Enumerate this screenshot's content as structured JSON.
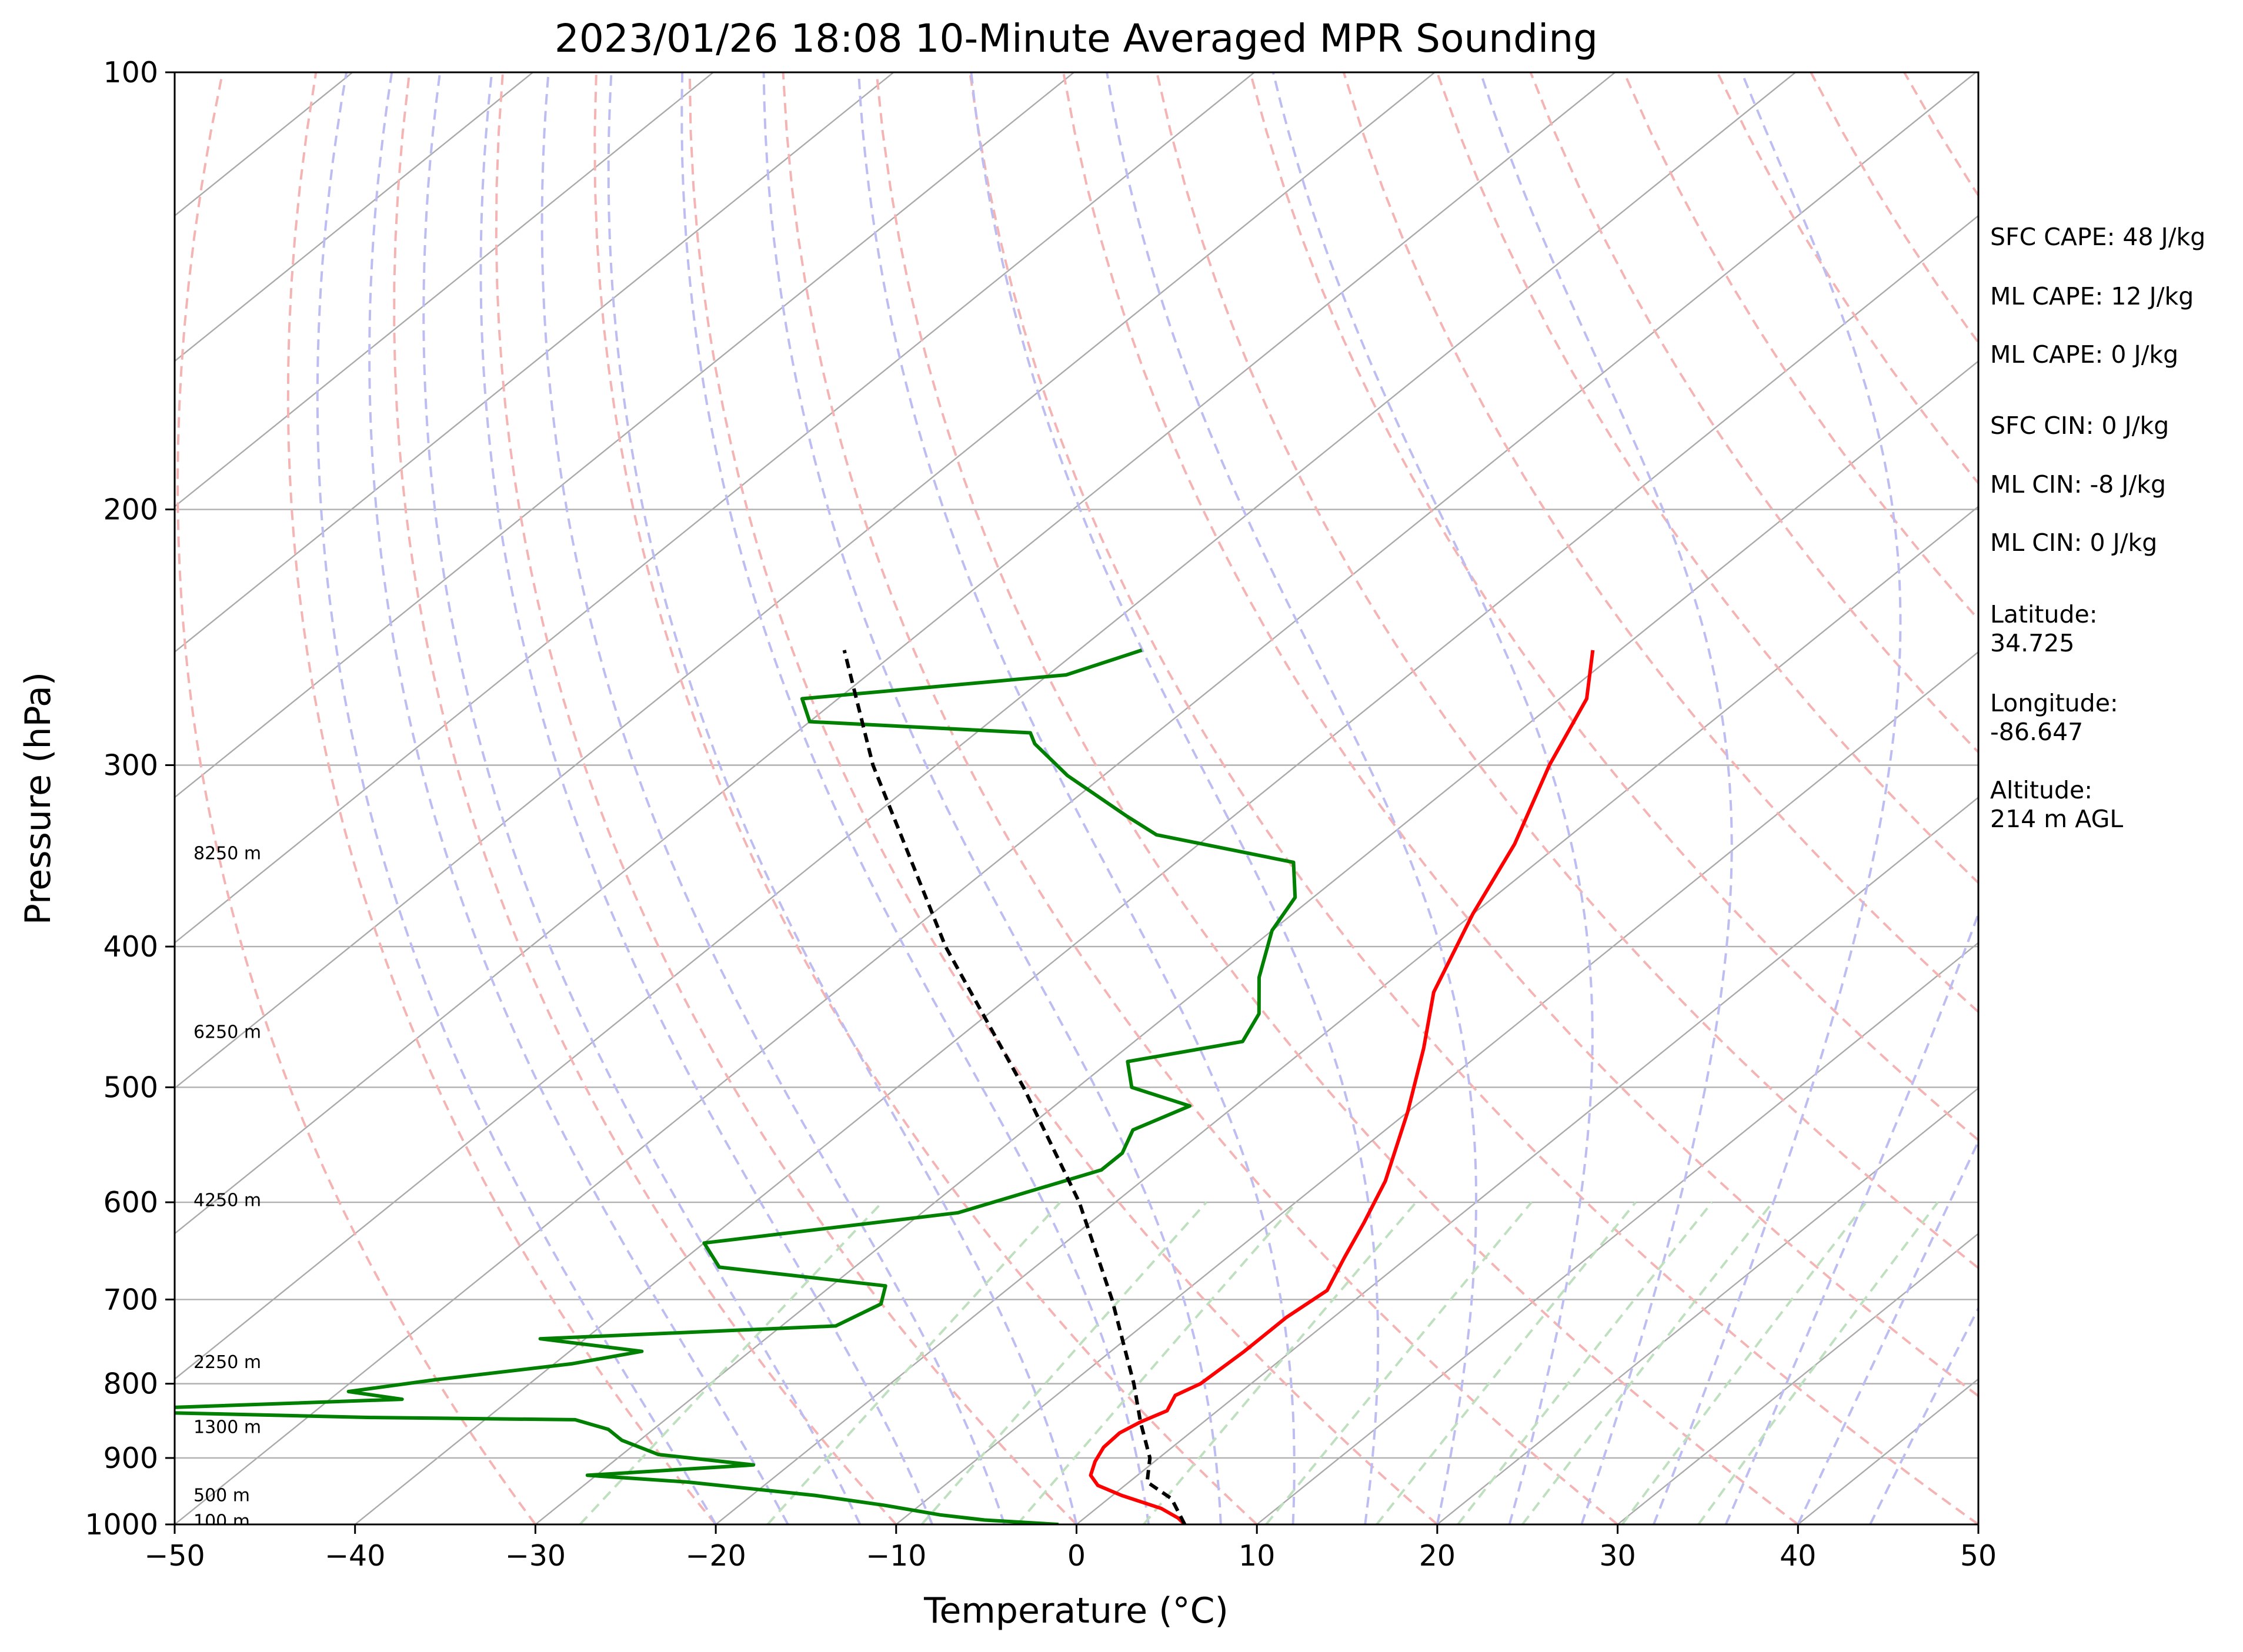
{
  "chart_data": {
    "type": "line",
    "title": "2023/01/26 18:08 10-Minute Averaged MPR Sounding",
    "xlabel": "Temperature (°C)",
    "ylabel": "Pressure (hPa)",
    "xlim": [
      -50,
      50
    ],
    "ylim": [
      1000,
      100
    ],
    "y_scale": "log",
    "x_ticks": [
      -50,
      -40,
      -30,
      -20,
      -10,
      0,
      10,
      20,
      30,
      40,
      50
    ],
    "x_tick_labels": [
      "−50",
      "−40",
      "−30",
      "−20",
      "−10",
      "0",
      "10",
      "20",
      "30",
      "40",
      "50"
    ],
    "y_ticks": [
      100,
      200,
      300,
      400,
      500,
      600,
      700,
      800,
      900,
      1000
    ],
    "y_tick_labels": [
      "100",
      "200",
      "300",
      "400",
      "500",
      "600",
      "700",
      "800",
      "900",
      "1000"
    ],
    "grid": true,
    "skew": "skew-T log-p",
    "background_lines": {
      "isotherms": {
        "color": "#aaaaaa",
        "style": "solid"
      },
      "dry_adiabats": {
        "color": "#f4b4b4",
        "style": "dashed"
      },
      "moist_adiabats": {
        "color": "#bdbdf2",
        "style": "dashed"
      },
      "mixing_ratio": {
        "color": "#bfe0bf",
        "style": "dashed"
      }
    },
    "series": [
      {
        "color": "#ff0000",
        "points": [
          {
            "p": 1000,
            "t": 6.0
          },
          {
            "p": 990,
            "t": 5.2
          },
          {
            "p": 975,
            "t": 3.6
          },
          {
            "p": 955,
            "t": 0.5
          },
          {
            "p": 940,
            "t": -1.5
          },
          {
            "p": 925,
            "t": -2.6
          },
          {
            "p": 905,
            "t": -3.3
          },
          {
            "p": 885,
            "t": -3.8
          },
          {
            "p": 865,
            "t": -3.9
          },
          {
            "p": 850,
            "t": -3.5
          },
          {
            "p": 835,
            "t": -2.8
          },
          {
            "p": 815,
            "t": -3.4
          },
          {
            "p": 800,
            "t": -2.8
          },
          {
            "p": 760,
            "t": -2.6
          },
          {
            "p": 720,
            "t": -2.6
          },
          {
            "p": 690,
            "t": -2.2
          },
          {
            "p": 655,
            "t": -3.5
          },
          {
            "p": 620,
            "t": -4.8
          },
          {
            "p": 580,
            "t": -6.5
          },
          {
            "p": 520,
            "t": -10
          },
          {
            "p": 470,
            "t": -13.5
          },
          {
            "p": 430,
            "t": -16.8
          },
          {
            "p": 380,
            "t": -20
          },
          {
            "p": 340,
            "t": -22.5
          },
          {
            "p": 300,
            "t": -26
          },
          {
            "p": 270,
            "t": -28.5
          },
          {
            "p": 250,
            "t": -31.5
          }
        ]
      },
      {
        "color": "#008000",
        "points": [
          {
            "p": 1000,
            "t": -1.0
          },
          {
            "p": 993,
            "t": -5.4
          },
          {
            "p": 985,
            "t": -8.2
          },
          {
            "p": 970,
            "t": -12
          },
          {
            "p": 955,
            "t": -16.5
          },
          {
            "p": 935,
            "t": -24.5
          },
          {
            "p": 925,
            "t": -30.5
          },
          {
            "p": 910,
            "t": -22
          },
          {
            "p": 895,
            "t": -28
          },
          {
            "p": 875,
            "t": -31
          },
          {
            "p": 860,
            "t": -32.5
          },
          {
            "p": 847,
            "t": -35
          },
          {
            "p": 844,
            "t": -46.5
          },
          {
            "p": 835,
            "t": -63
          },
          {
            "p": 820,
            "t": -46
          },
          {
            "p": 810,
            "t": -49.5
          },
          {
            "p": 795,
            "t": -45.5
          },
          {
            "p": 775,
            "t": -39
          },
          {
            "p": 760,
            "t": -36
          },
          {
            "p": 745,
            "t": -42.5
          },
          {
            "p": 730,
            "t": -27
          },
          {
            "p": 705,
            "t": -26
          },
          {
            "p": 685,
            "t": -27
          },
          {
            "p": 665,
            "t": -37.5
          },
          {
            "p": 640,
            "t": -40
          },
          {
            "p": 610,
            "t": -28
          },
          {
            "p": 570,
            "t": -23
          },
          {
            "p": 555,
            "t": -23
          },
          {
            "p": 535,
            "t": -24
          },
          {
            "p": 515,
            "t": -22.5
          },
          {
            "p": 500,
            "t": -27
          },
          {
            "p": 480,
            "t": -29
          },
          {
            "p": 465,
            "t": -24
          },
          {
            "p": 445,
            "t": -25
          },
          {
            "p": 420,
            "t": -27.5
          },
          {
            "p": 390,
            "t": -30
          },
          {
            "p": 370,
            "t": -31
          },
          {
            "p": 350,
            "t": -33.5
          },
          {
            "p": 335,
            "t": -43
          },
          {
            "p": 325,
            "t": -46
          },
          {
            "p": 305,
            "t": -52
          },
          {
            "p": 290,
            "t": -56
          },
          {
            "p": 285,
            "t": -57
          },
          {
            "p": 280,
            "t": -70
          },
          {
            "p": 270,
            "t": -72
          },
          {
            "p": 260,
            "t": -59
          },
          {
            "p": 250,
            "t": -56.5
          }
        ]
      },
      {
        "color": "#000000",
        "style": "dashed",
        "points": [
          {
            "p": 1000,
            "t": 6.0
          },
          {
            "p": 960,
            "t": 3.5
          },
          {
            "p": 935,
            "t": 1.0
          },
          {
            "p": 900,
            "t": -0.5
          },
          {
            "p": 850,
            "t": -3.5
          },
          {
            "p": 800,
            "t": -6.5
          },
          {
            "p": 700,
            "t": -13.5
          },
          {
            "p": 600,
            "t": -22
          },
          {
            "p": 500,
            "t": -33
          },
          {
            "p": 400,
            "t": -47
          },
          {
            "p": 300,
            "t": -63.5
          },
          {
            "p": 250,
            "t": -73
          }
        ]
      }
    ],
    "height_labels": [
      {
        "p": 995,
        "text": "100 m"
      },
      {
        "p": 955,
        "text": "500 m"
      },
      {
        "p": 857,
        "text": "1300 m"
      },
      {
        "p": 773,
        "text": "2250 m"
      },
      {
        "p": 598,
        "text": "4250 m"
      },
      {
        "p": 458,
        "text": "6250 m"
      },
      {
        "p": 345,
        "text": "8250 m"
      }
    ],
    "annotations": [
      "SFC CAPE: 48 J/kg",
      "ML CAPE: 12 J/kg",
      "ML CAPE: 0 J/kg",
      "SFC CIN: 0 J/kg",
      "ML CIN: -8 J/kg",
      "ML CIN: 0 J/kg",
      [
        "Latitude:",
        "34.725"
      ],
      [
        "Longitude:",
        "-86.647"
      ],
      [
        "Altitude:",
        "214 m AGL"
      ]
    ]
  }
}
